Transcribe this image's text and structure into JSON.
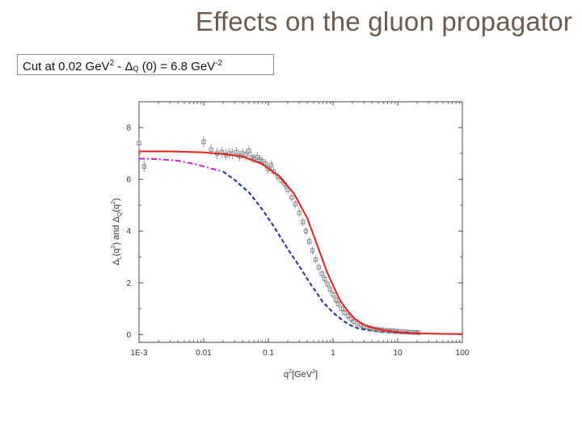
{
  "slide": {
    "title": "Effects on the gluon propagator",
    "caption": {
      "prefix": "Cut at  0.02 GeV",
      "prefix_exp": "2",
      "middle": "  - ",
      "delta": "Δ",
      "delta_sub": "Q",
      "suffix": " (0) = 6.8 GeV",
      "suffix_exp": "-2"
    }
  },
  "chart_data": {
    "type": "line",
    "x_scale": "log",
    "xlim": [
      0.001,
      100
    ],
    "ylim": [
      -0.3,
      9
    ],
    "x_ticks": [
      {
        "value": 0.001,
        "label": "1E-3"
      },
      {
        "value": 0.01,
        "label": "0.01"
      },
      {
        "value": 0.1,
        "label": "0.1"
      },
      {
        "value": 1,
        "label": "1"
      },
      {
        "value": 10,
        "label": "10"
      },
      {
        "value": 100,
        "label": "100"
      }
    ],
    "y_ticks": [
      {
        "value": 0,
        "label": "0"
      },
      {
        "value": 2,
        "label": "2"
      },
      {
        "value": 4,
        "label": "4"
      },
      {
        "value": 6,
        "label": "6"
      },
      {
        "value": 8,
        "label": "8"
      }
    ],
    "xlabel": {
      "base": "q",
      "exp": "2",
      "unit_open": "[GeV",
      "unit_exp": "2",
      "unit_close": "]"
    },
    "ylabel": {
      "d1": "Δ",
      "s1": "L",
      "p1": "(q",
      "e1": "2",
      "p2": ") and ",
      "d2": "Δ",
      "s2": "Q",
      "p3": "(q",
      "e3": "2",
      "p4": ")"
    },
    "grid": false,
    "series": [
      {
        "style": "solid",
        "color": "#e02020",
        "x": [
          0.001,
          0.003,
          0.01,
          0.02,
          0.04,
          0.08,
          0.15,
          0.25,
          0.4,
          0.6,
          0.8,
          1.0,
          1.3,
          1.7,
          2.2,
          3,
          4,
          6,
          10,
          20,
          40,
          100
        ],
        "y": [
          7.08,
          7.08,
          7.04,
          6.98,
          6.88,
          6.6,
          6.1,
          5.45,
          4.5,
          3.3,
          2.45,
          1.9,
          1.3,
          0.9,
          0.6,
          0.38,
          0.26,
          0.17,
          0.1,
          0.05,
          0.03,
          0.02
        ]
      },
      {
        "style": "dashed",
        "color": "#1a2aa8",
        "x": [
          0.02,
          0.03,
          0.05,
          0.08,
          0.12,
          0.2,
          0.3,
          0.45,
          0.7,
          1.0,
          1.5,
          2.0,
          2.5,
          3.0,
          4,
          6,
          10,
          20
        ],
        "y": [
          6.3,
          5.98,
          5.5,
          4.85,
          4.2,
          3.3,
          2.65,
          1.95,
          1.25,
          0.85,
          0.5,
          0.32,
          0.23,
          0.2,
          0.15,
          0.1,
          0.06,
          0.03
        ]
      },
      {
        "style": "dashdot",
        "color": "#d020d0",
        "x": [
          0.001,
          0.002,
          0.004,
          0.007,
          0.01,
          0.015,
          0.02
        ],
        "y": [
          6.8,
          6.78,
          6.72,
          6.6,
          6.5,
          6.38,
          6.3
        ]
      },
      {
        "style": "markers",
        "color": "#7d7d7d",
        "x": [
          0.001,
          0.0012,
          0.01,
          0.013,
          0.016,
          0.019,
          0.022,
          0.025,
          0.028,
          0.032,
          0.036,
          0.04,
          0.045,
          0.05,
          0.055,
          0.06,
          0.067,
          0.074,
          0.08,
          0.09,
          0.1,
          0.11,
          0.12,
          0.14,
          0.16,
          0.18,
          0.2,
          0.23,
          0.26,
          0.3,
          0.34,
          0.38,
          0.43,
          0.48,
          0.54,
          0.6,
          0.67,
          0.74,
          0.82,
          0.9,
          1.0,
          1.1,
          1.2,
          1.35,
          1.5,
          1.7,
          1.9,
          2.1,
          2.4,
          2.7,
          3.0,
          3.4,
          3.8,
          4.3,
          4.8,
          5.4,
          6.0,
          6.8,
          7.6,
          8.5,
          9.5,
          10.5,
          12,
          13.5,
          15,
          17,
          19,
          21
        ],
        "y": [
          7.4,
          6.5,
          7.45,
          7.15,
          7.0,
          7.05,
          6.95,
          7.0,
          7.0,
          7.05,
          6.9,
          7.0,
          6.95,
          7.1,
          6.85,
          6.8,
          6.85,
          6.75,
          6.7,
          6.6,
          6.4,
          6.55,
          6.3,
          6.1,
          5.95,
          5.8,
          5.6,
          5.3,
          5.05,
          4.7,
          4.35,
          4.0,
          3.6,
          3.25,
          2.9,
          2.6,
          2.35,
          2.15,
          1.95,
          1.75,
          1.55,
          1.35,
          1.18,
          1.0,
          0.85,
          0.72,
          0.6,
          0.5,
          0.42,
          0.36,
          0.32,
          0.28,
          0.25,
          0.22,
          0.2,
          0.18,
          0.17,
          0.16,
          0.15,
          0.14,
          0.13,
          0.12,
          0.11,
          0.1,
          0.09,
          0.085,
          0.08,
          0.075
        ]
      }
    ]
  }
}
